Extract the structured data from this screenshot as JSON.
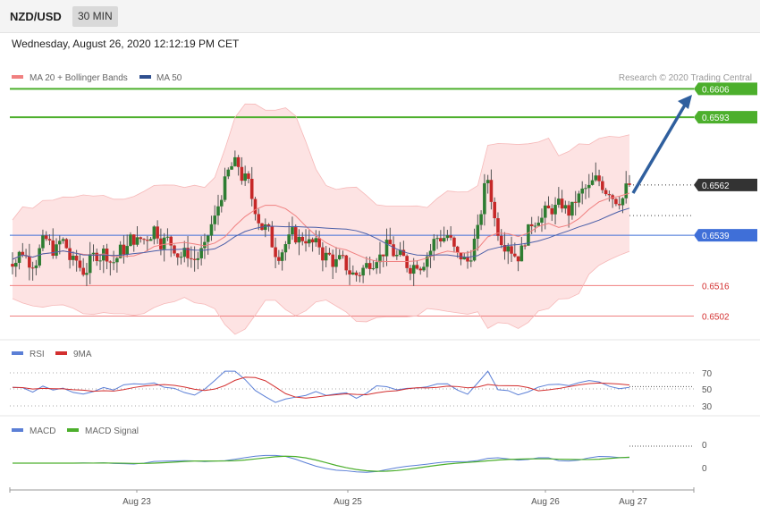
{
  "header": {
    "pair": "NZD/USD",
    "timeframe": "30 MIN"
  },
  "datetime": "Wednesday, August 26, 2020 12:12:19 PM CET",
  "legend": {
    "ma20": "MA 20 + Bollinger Bands",
    "ma50": "MA 50",
    "copyright": "Research © 2020 Trading Central"
  },
  "colors": {
    "up": "#2e7d32",
    "down": "#c62828",
    "bollinger": "#fde3e3",
    "ma20": "#f08080",
    "ma50": "#4a5fa8",
    "target": "#4caf2c",
    "pivot": "#3f6fd8",
    "support": "#f08080",
    "arrow": "#2f5f9e"
  },
  "chart_data": {
    "type": "candlestick",
    "x_labels": [
      "Aug 23",
      "Aug 25",
      "Aug 26",
      "Aug 27"
    ],
    "ylim": [
      0.6492,
      0.6618
    ],
    "levels": [
      {
        "value": 0.6606,
        "label": "0.6606",
        "kind": "resistance"
      },
      {
        "value": 0.6593,
        "label": "0.6593",
        "kind": "resistance"
      },
      {
        "value": 0.6562,
        "label": "0.6562",
        "kind": "current"
      },
      {
        "value": 0.6539,
        "label": "0.6539",
        "kind": "pivot"
      },
      {
        "value": 0.6516,
        "label": "0.6516",
        "kind": "support"
      },
      {
        "value": 0.6502,
        "label": "0.6502",
        "kind": "support"
      }
    ],
    "price_close": [
      0.6528,
      0.6532,
      0.6527,
      0.6535,
      0.6533,
      0.6536,
      0.6526,
      0.6523,
      0.6529,
      0.6531,
      0.6527,
      0.6533,
      0.6538,
      0.6537,
      0.6542,
      0.6536,
      0.6534,
      0.653,
      0.6528,
      0.6532,
      0.6546,
      0.6562,
      0.6571,
      0.6564,
      0.6552,
      0.6542,
      0.6532,
      0.6535,
      0.6539,
      0.6538,
      0.6534,
      0.6529,
      0.6526,
      0.6525,
      0.6521,
      0.6525,
      0.653,
      0.6533,
      0.6529,
      0.6526,
      0.6527,
      0.653,
      0.6538,
      0.6539,
      0.6529,
      0.6527,
      0.654,
      0.6565,
      0.6542,
      0.6536,
      0.653,
      0.654,
      0.6548,
      0.655,
      0.6552,
      0.655,
      0.6556,
      0.656,
      0.6564,
      0.656,
      0.6556,
      0.6562
    ],
    "rsi": {
      "levels": [
        70,
        50,
        30
      ],
      "series": [
        "RSI",
        "9MA"
      ]
    },
    "macd": {
      "levels": [
        0,
        0
      ],
      "series": [
        "MACD",
        "MACD Signal"
      ]
    }
  },
  "rsi_legend": {
    "rsi": "RSI",
    "ma": "9MA"
  },
  "macd_legend": {
    "macd": "MACD",
    "signal": "MACD Signal"
  },
  "rsi_ticks": [
    "70",
    "50",
    "30"
  ],
  "macd_ticks": [
    "0",
    "0"
  ]
}
